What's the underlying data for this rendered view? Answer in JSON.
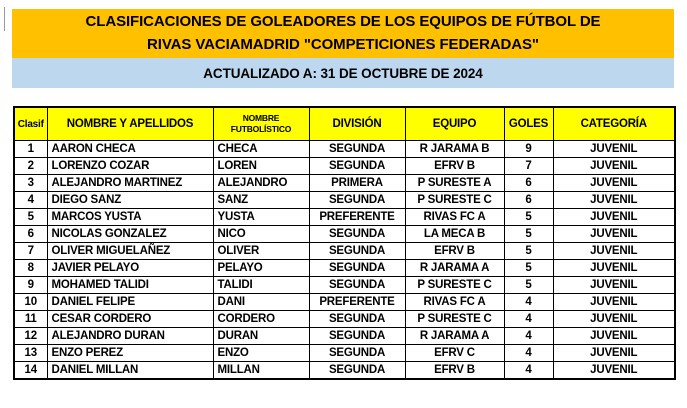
{
  "header": {
    "title_line1": "CLASIFICACIONES DE GOLEADORES DE LOS EQUIPOS DE FÚTBOL DE",
    "title_line2": "RIVAS VACIAMADRID \"COMPETICIONES FEDERADAS\"",
    "updated_label": "ACTUALIZADO A: 31 DE OCTUBRE DE 2024"
  },
  "colors": {
    "title_bg": "#FFC000",
    "updated_bg": "#BDD7EE",
    "table_header_bg": "#FFFF00",
    "grid_border": "#000000",
    "text": "#000000",
    "page_bg": "#FFFFFF"
  },
  "table": {
    "columns": [
      {
        "key": "clasif",
        "label": "Clasif",
        "align": "center"
      },
      {
        "key": "nombre-apellidos",
        "label": "NOMBRE Y APELLIDOS",
        "align": "left"
      },
      {
        "key": "nombre-futbolistico",
        "label": "NOMBRE FUTBOLÍSTICO",
        "align": "left"
      },
      {
        "key": "division",
        "label": "DIVISIÓN",
        "align": "center"
      },
      {
        "key": "equipo",
        "label": "EQUIPO",
        "align": "center"
      },
      {
        "key": "goles",
        "label": "GOLES",
        "align": "center"
      },
      {
        "key": "categoria",
        "label": "CATEGORÍA",
        "align": "center"
      }
    ],
    "rows": [
      [
        "1",
        "AARON CHECA",
        "CHECA",
        "SEGUNDA",
        "R JARAMA B",
        "9",
        "JUVENIL"
      ],
      [
        "2",
        "LORENZO COZAR",
        "LOREN",
        "SEGUNDA",
        "EFRV B",
        "7",
        "JUVENIL"
      ],
      [
        "3",
        "ALEJANDRO MARTINEZ",
        "ALEJANDRO",
        "PRIMERA",
        "P SURESTE A",
        "6",
        "JUVENIL"
      ],
      [
        "4",
        "DIEGO SANZ",
        "SANZ",
        "SEGUNDA",
        "P SURESTE C",
        "6",
        "JUVENIL"
      ],
      [
        "5",
        "MARCOS YUSTA",
        "YUSTA",
        "PREFERENTE",
        "RIVAS FC A",
        "5",
        "JUVENIL"
      ],
      [
        "6",
        "NICOLAS GONZALEZ",
        "NICO",
        "SEGUNDA",
        "LA MECA B",
        "5",
        "JUVENIL"
      ],
      [
        "7",
        "OLIVER MIGUELAÑEZ",
        "OLIVER",
        "SEGUNDA",
        "EFRV B",
        "5",
        "JUVENIL"
      ],
      [
        "8",
        "JAVIER PELAYO",
        "PELAYO",
        "SEGUNDA",
        "R JARAMA A",
        "5",
        "JUVENIL"
      ],
      [
        "9",
        "MOHAMED TALIDI",
        "TALIDI",
        "SEGUNDA",
        "P SURESTE C",
        "5",
        "JUVENIL"
      ],
      [
        "10",
        "DANIEL FELIPE",
        "DANI",
        "PREFERENTE",
        "RIVAS FC A",
        "4",
        "JUVENIL"
      ],
      [
        "11",
        "CESAR CORDERO",
        "CORDERO",
        "SEGUNDA",
        "P SURESTE C",
        "4",
        "JUVENIL"
      ],
      [
        "12",
        "ALEJANDRO DURAN",
        "DURAN",
        "SEGUNDA",
        "R JARAMA A",
        "4",
        "JUVENIL"
      ],
      [
        "13",
        "ENZO PEREZ",
        "ENZO",
        "SEGUNDA",
        "EFRV C",
        "4",
        "JUVENIL"
      ],
      [
        "14",
        "DANIEL MILLAN",
        "MILLAN",
        "SEGUNDA",
        "EFRV B",
        "4",
        "JUVENIL"
      ]
    ]
  }
}
